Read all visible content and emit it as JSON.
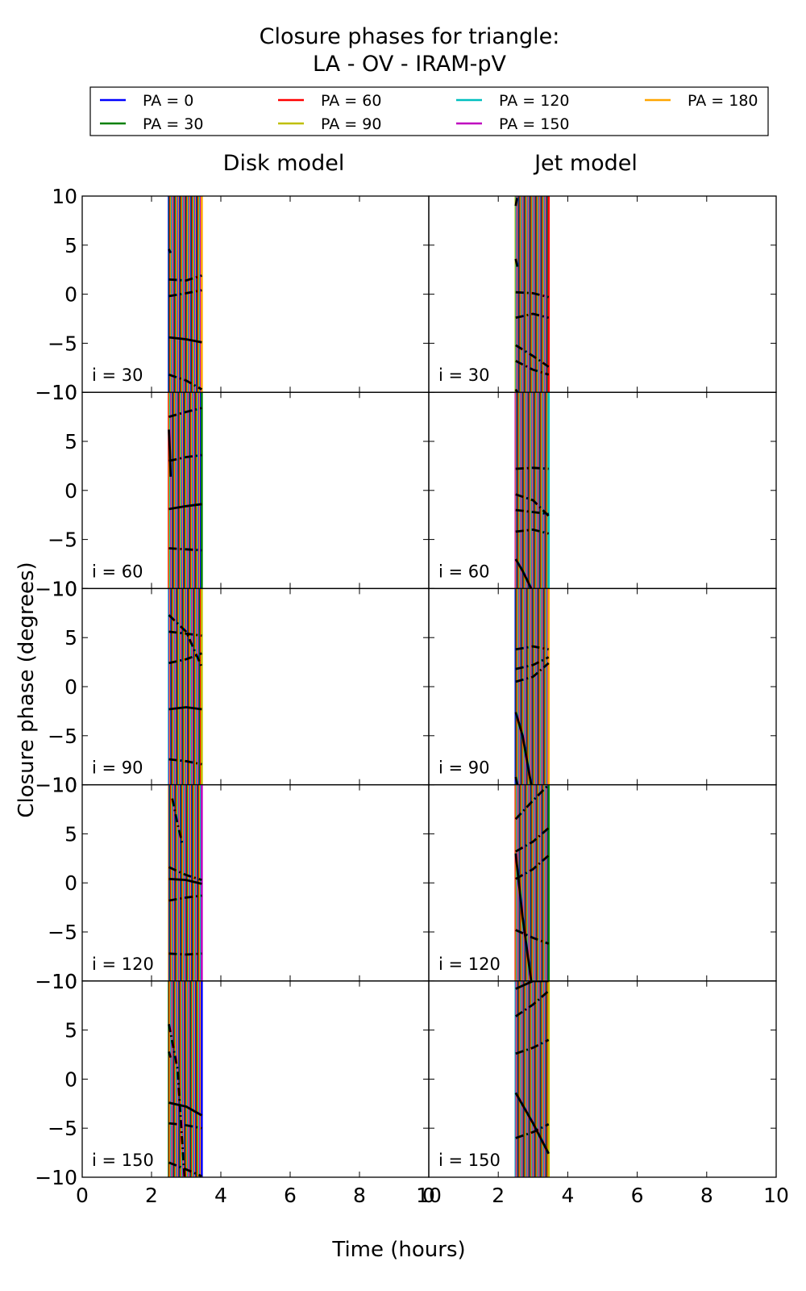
{
  "chart_data": {
    "type": "line",
    "title_line1": "Closure phases for triangle:",
    "title_line2": "LA - OV - IRAM-pV",
    "xlabel": "Time (hours)",
    "ylabel": "Closure phase (degrees)",
    "xlim": [
      0,
      10
    ],
    "ylim": [
      -10,
      10
    ],
    "x_ticks": [
      "0",
      "2",
      "4",
      "6",
      "8",
      "10"
    ],
    "y_ticks": [
      "−10",
      "−5",
      "0",
      "5",
      "10"
    ],
    "legend_placement": "top",
    "columns": [
      "Disk model",
      "Jet model"
    ],
    "rows": [
      "i = 30",
      "i = 60",
      "i = 90",
      "i = 120",
      "i = 150"
    ],
    "legend": [
      {
        "label": "PA = 0",
        "color": "#0000ff"
      },
      {
        "label": "PA = 30",
        "color": "#008000"
      },
      {
        "label": "PA = 60",
        "color": "#ff0000"
      },
      {
        "label": "PA = 90",
        "color": "#bfbf00"
      },
      {
        "label": "PA = 120",
        "color": "#00bfbf"
      },
      {
        "label": "PA = 150",
        "color": "#bf00bf"
      },
      {
        "label": "PA = 180",
        "color": "#ffa500"
      }
    ],
    "time_range": [
      2.5,
      3.45
    ],
    "series_color": "#000000",
    "panels": [
      {
        "row": 0,
        "col": 0,
        "curves": [
          {
            "style": "solid",
            "x": [
              2.5,
              3.0,
              3.45
            ],
            "y": [
              -4.4,
              -4.6,
              -4.9
            ]
          },
          {
            "style": "dashdot",
            "x": [
              2.5,
              3.0,
              3.45
            ],
            "y": [
              -8.2,
              -8.8,
              -9.7
            ]
          },
          {
            "style": "dashdot",
            "x": [
              2.5,
              3.0,
              3.45
            ],
            "y": [
              1.5,
              1.4,
              1.9
            ]
          },
          {
            "style": "dashdot",
            "x": [
              2.5,
              3.0,
              3.45
            ],
            "y": [
              -0.2,
              0.1,
              0.4
            ]
          },
          {
            "style": "dashdot",
            "x": [
              2.5,
              2.55
            ],
            "y": [
              4.6,
              4.2
            ]
          }
        ]
      },
      {
        "row": 0,
        "col": 1,
        "curves": [
          {
            "style": "solid",
            "x": [
              2.5,
              2.55
            ],
            "y": [
              -9.7,
              -10.0
            ]
          },
          {
            "style": "dashdot",
            "x": [
              2.5,
              3.0,
              3.45
            ],
            "y": [
              -6.8,
              -7.7,
              -8.2
            ]
          },
          {
            "style": "dashdot",
            "x": [
              2.5,
              3.0,
              3.45
            ],
            "y": [
              -5.2,
              -6.3,
              -7.4
            ]
          },
          {
            "style": "dashdot",
            "x": [
              2.5,
              3.0,
              3.45
            ],
            "y": [
              -2.4,
              -2.0,
              -2.4
            ]
          },
          {
            "style": "dashdot",
            "x": [
              2.5,
              3.0,
              3.45
            ],
            "y": [
              0.2,
              0.1,
              -0.3
            ]
          },
          {
            "style": "dashdot",
            "x": [
              2.5,
              2.55
            ],
            "y": [
              3.6,
              2.8
            ]
          },
          {
            "style": "dashdot",
            "x": [
              2.5,
              2.55
            ],
            "y": [
              9.0,
              10.0
            ]
          }
        ]
      },
      {
        "row": 1,
        "col": 0,
        "curves": [
          {
            "style": "solid",
            "x": [
              2.5,
              3.0,
              3.45
            ],
            "y": [
              -1.9,
              -1.6,
              -1.4
            ]
          },
          {
            "style": "dashdot",
            "x": [
              2.5,
              3.0,
              3.45
            ],
            "y": [
              -5.9,
              -6.0,
              -6.1
            ]
          },
          {
            "style": "solid",
            "x": [
              2.5,
              2.53,
              2.55
            ],
            "y": [
              6.2,
              4.0,
              1.4
            ]
          },
          {
            "style": "dashdot",
            "x": [
              2.5,
              3.0,
              3.45
            ],
            "y": [
              3.0,
              3.4,
              3.6
            ]
          },
          {
            "style": "dashdot",
            "x": [
              2.5,
              3.0,
              3.45
            ],
            "y": [
              7.5,
              8.0,
              8.4
            ]
          }
        ]
      },
      {
        "row": 1,
        "col": 1,
        "curves": [
          {
            "style": "solid",
            "x": [
              2.5,
              2.7,
              2.95
            ],
            "y": [
              -7.0,
              -8.2,
              -10.0
            ]
          },
          {
            "style": "dashdot",
            "x": [
              2.5,
              3.0,
              3.45
            ],
            "y": [
              -0.4,
              -1.0,
              -2.6
            ]
          },
          {
            "style": "dashdot",
            "x": [
              2.5,
              3.0,
              3.45
            ],
            "y": [
              2.2,
              2.3,
              2.2
            ]
          },
          {
            "style": "dashdot",
            "x": [
              2.5,
              3.0,
              3.45
            ],
            "y": [
              -4.2,
              -4.0,
              -4.4
            ]
          },
          {
            "style": "dashdot",
            "x": [
              2.5,
              3.0,
              3.45
            ],
            "y": [
              -2.0,
              -2.2,
              -2.4
            ]
          }
        ]
      },
      {
        "row": 2,
        "col": 0,
        "curves": [
          {
            "style": "solid",
            "x": [
              2.5,
              3.0,
              3.45
            ],
            "y": [
              -2.3,
              -2.1,
              -2.3
            ]
          },
          {
            "style": "dashdot",
            "x": [
              2.5,
              3.0,
              3.45
            ],
            "y": [
              -7.4,
              -7.6,
              -7.9
            ]
          },
          {
            "style": "dashdot",
            "x": [
              2.5,
              3.0,
              3.45
            ],
            "y": [
              7.3,
              5.6,
              2.0
            ]
          },
          {
            "style": "dashdot",
            "x": [
              2.5,
              3.0,
              3.45
            ],
            "y": [
              2.4,
              2.8,
              3.4
            ]
          },
          {
            "style": "dashdot",
            "x": [
              2.5,
              3.0,
              3.45
            ],
            "y": [
              5.6,
              5.4,
              5.2
            ]
          }
        ]
      },
      {
        "row": 2,
        "col": 1,
        "curves": [
          {
            "style": "solid",
            "x": [
              2.5,
              2.7,
              2.95
            ],
            "y": [
              -2.6,
              -5.0,
              -10.0
            ]
          },
          {
            "style": "dashdot",
            "x": [
              2.5,
              3.0,
              3.45
            ],
            "y": [
              3.8,
              4.1,
              3.8
            ]
          },
          {
            "style": "dashdot",
            "x": [
              2.5,
              3.0,
              3.45
            ],
            "y": [
              1.8,
              2.2,
              3.0
            ]
          },
          {
            "style": "dashdot",
            "x": [
              2.5,
              3.0,
              3.45
            ],
            "y": [
              0.5,
              1.0,
              2.4
            ]
          },
          {
            "style": "dashdot",
            "x": [
              2.5,
              2.55
            ],
            "y": [
              -9.2,
              -10.0
            ]
          }
        ]
      },
      {
        "row": 3,
        "col": 0,
        "curves": [
          {
            "style": "solid",
            "x": [
              2.5,
              3.0,
              3.45
            ],
            "y": [
              0.4,
              0.3,
              -0.1
            ]
          },
          {
            "style": "dashdot",
            "x": [
              2.5,
              3.0,
              3.45
            ],
            "y": [
              -1.8,
              -1.5,
              -1.3
            ]
          },
          {
            "style": "dashdot",
            "x": [
              2.5,
              3.0,
              3.45
            ],
            "y": [
              -7.2,
              -7.3,
              -7.2
            ]
          },
          {
            "style": "dashdot",
            "x": [
              2.5,
              3.0,
              3.45
            ],
            "y": [
              1.6,
              0.8,
              0.3
            ]
          },
          {
            "style": "dashdot",
            "x": [
              2.6,
              2.75,
              2.9
            ],
            "y": [
              8.6,
              6.0,
              3.8
            ]
          }
        ]
      },
      {
        "row": 3,
        "col": 1,
        "curves": [
          {
            "style": "solid",
            "x": [
              2.5,
              2.7,
              2.95
            ],
            "y": [
              3.0,
              -3.5,
              -10.0
            ]
          },
          {
            "style": "dashdot",
            "x": [
              2.5,
              3.0,
              3.45
            ],
            "y": [
              6.5,
              8.4,
              10.0
            ]
          },
          {
            "style": "dashdot",
            "x": [
              2.5,
              3.0,
              3.45
            ],
            "y": [
              3.2,
              4.2,
              5.6
            ]
          },
          {
            "style": "dashdot",
            "x": [
              2.5,
              3.0,
              3.45
            ],
            "y": [
              0.4,
              1.4,
              2.8
            ]
          },
          {
            "style": "dashdot",
            "x": [
              2.5,
              3.0,
              3.45
            ],
            "y": [
              -4.8,
              -5.6,
              -6.2
            ]
          }
        ]
      },
      {
        "row": 4,
        "col": 0,
        "curves": [
          {
            "style": "solid",
            "x": [
              2.5,
              3.0,
              3.45
            ],
            "y": [
              -2.4,
              -2.8,
              -3.7
            ]
          },
          {
            "style": "dashdot",
            "x": [
              2.5,
              3.0,
              3.45
            ],
            "y": [
              -4.5,
              -4.7,
              -5.0
            ]
          },
          {
            "style": "dashdot",
            "x": [
              2.5,
              2.75,
              2.95
            ],
            "y": [
              5.6,
              1.0,
              -10.0
            ]
          },
          {
            "style": "dashdot",
            "x": [
              2.5,
              2.55
            ],
            "y": [
              2.8,
              2.2
            ]
          },
          {
            "style": "dashdot",
            "x": [
              2.5,
              3.0,
              3.45
            ],
            "y": [
              -8.5,
              -9.2,
              -9.9
            ]
          }
        ]
      },
      {
        "row": 4,
        "col": 1,
        "curves": [
          {
            "style": "solid",
            "x": [
              2.5,
              3.0,
              3.45
            ],
            "y": [
              -1.4,
              -4.5,
              -7.6
            ]
          },
          {
            "style": "solid",
            "x": [
              2.5,
              3.0,
              3.45
            ],
            "y": [
              9.2,
              10.0,
              10.0
            ]
          },
          {
            "style": "dashdot",
            "x": [
              2.5,
              3.0,
              3.45
            ],
            "y": [
              6.4,
              7.6,
              9.0
            ]
          },
          {
            "style": "dashdot",
            "x": [
              2.5,
              3.0,
              3.45
            ],
            "y": [
              2.6,
              3.2,
              4.0
            ]
          },
          {
            "style": "dashdot",
            "x": [
              2.5,
              3.0,
              3.45
            ],
            "y": [
              -6.0,
              -5.4,
              -4.6
            ]
          }
        ]
      }
    ]
  }
}
